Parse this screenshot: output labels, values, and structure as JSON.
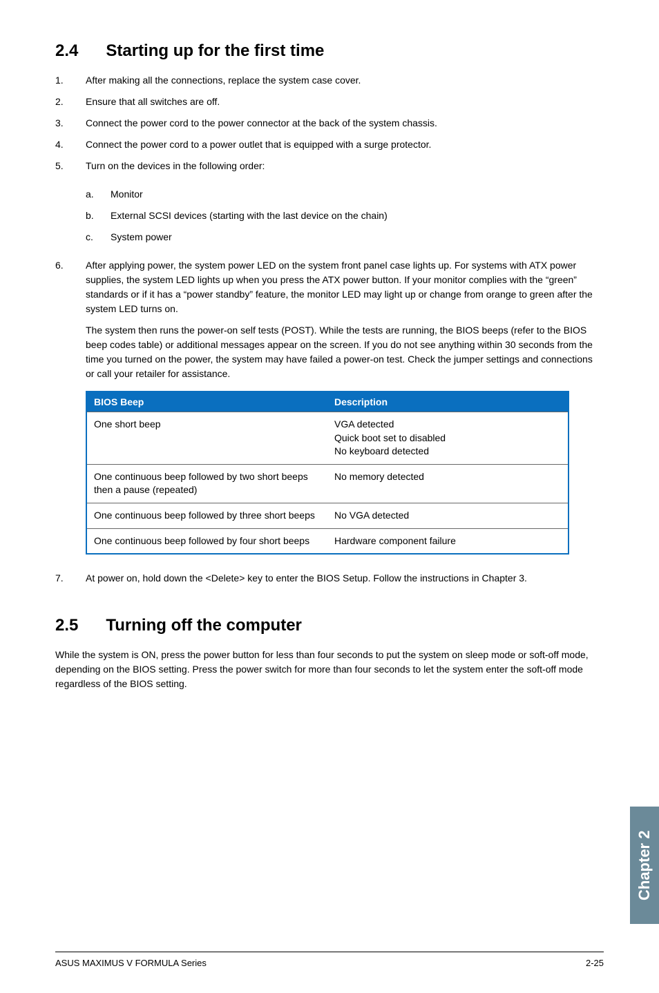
{
  "section24": {
    "num": "2.4",
    "title": "Starting up for the first time",
    "items": [
      {
        "n": "1.",
        "text": "After making all the connections, replace the system case cover."
      },
      {
        "n": "2.",
        "text": "Ensure that all switches are off."
      },
      {
        "n": "3.",
        "text": "Connect the power cord to the power connector at the back of the system chassis."
      },
      {
        "n": "4.",
        "text": "Connect the power cord to a power outlet that is equipped with a surge protector."
      },
      {
        "n": "5.",
        "text": "Turn on the devices in the following order:"
      }
    ],
    "subitems": [
      {
        "l": "a.",
        "text": "Monitor"
      },
      {
        "l": "b.",
        "text": "External SCSI devices (starting with the last device on the chain)"
      },
      {
        "l": "c.",
        "text": "System power"
      }
    ],
    "item6": {
      "n": "6.",
      "p1": "After applying power, the system power LED on the system front panel case lights up. For systems with ATX power supplies, the system LED lights up when you press the ATX power button. If your monitor complies with the “green” standards or if it has a “power standby” feature, the monitor LED may light up or change from orange to green after the system LED turns on.",
      "p2": "The system then runs the power-on self tests (POST). While the tests are running, the BIOS beeps (refer to the BIOS beep codes table) or additional messages appear on the screen. If you do not see anything within 30 seconds from the time you turned on the power, the system may have failed a power-on test. Check the jumper settings and connections or call your retailer for assistance."
    },
    "table": {
      "h1": "BIOS Beep",
      "h2": "Description",
      "rows": [
        {
          "c1": "One short beep",
          "c2": "VGA detected\nQuick boot set to disabled\nNo keyboard detected"
        },
        {
          "c1": "One continuous beep followed by two short beeps then a pause (repeated)",
          "c2": "No memory detected"
        },
        {
          "c1": "One continuous beep followed by three short beeps",
          "c2": "No VGA detected"
        },
        {
          "c1": "One continuous beep followed by four short beeps",
          "c2": "Hardware component failure"
        }
      ]
    },
    "item7": {
      "n": "7.",
      "text": "At power on, hold down the <Delete> key to enter the BIOS Setup. Follow the instructions in Chapter 3."
    }
  },
  "section25": {
    "num": "2.5",
    "title": "Turning off the computer",
    "body": "While the system is ON, press the power button for less than four seconds to put the system on sleep mode or soft-off mode, depending on the BIOS setting. Press the power switch for more than four seconds to let the system enter the soft-off mode regardless of the BIOS setting."
  },
  "sidetab": "Chapter 2",
  "footer": {
    "left": "ASUS MAXIMUS V FORMULA Series",
    "right": "2-25"
  },
  "colors": {
    "table_header_bg": "#0a6fbf",
    "sidetab_bg": "#6b8a99"
  }
}
